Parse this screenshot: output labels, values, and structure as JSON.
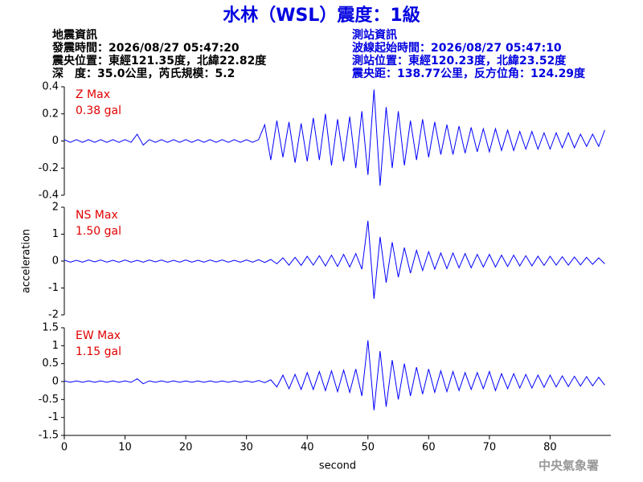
{
  "header": {
    "title": "水林（WSL）震度：1級",
    "left": [
      "地震資訊",
      "發震時間：2026/08/27 05:47:20",
      "震央位置：東經121.35度，北緯22.82度",
      "深　度：35.0公里，芮氏規模：5.2"
    ],
    "right": [
      "測站資訊",
      "波線起始時間：2026/08/27 05:47:10",
      "測站位置：東經120.23度，北緯23.52度",
      "震央距：138.77公里，反方位角：124.29度"
    ]
  },
  "chart_data": [
    {
      "type": "line",
      "annotation": [
        "Z Max",
        "0.38 gal"
      ],
      "color": "#0000ff",
      "xlim": [
        0,
        90
      ],
      "ylim": [
        -0.4,
        0.4
      ],
      "yticks": [
        -0.4,
        -0.2,
        0,
        0.2,
        0.4
      ],
      "x": [
        0,
        1,
        2,
        3,
        4,
        5,
        6,
        7,
        8,
        9,
        10,
        11,
        12,
        13,
        14,
        15,
        16,
        17,
        18,
        19,
        20,
        21,
        22,
        23,
        24,
        25,
        26,
        27,
        28,
        29,
        30,
        31,
        32,
        33,
        34,
        35,
        36,
        37,
        38,
        39,
        40,
        41,
        42,
        43,
        44,
        45,
        46,
        47,
        48,
        49,
        50,
        51,
        52,
        53,
        54,
        55,
        56,
        57,
        58,
        59,
        60,
        61,
        62,
        63,
        64,
        65,
        66,
        67,
        68,
        69,
        70,
        71,
        72,
        73,
        74,
        75,
        76,
        77,
        78,
        79,
        80,
        81,
        82,
        83,
        84,
        85,
        86,
        87,
        88,
        89
      ],
      "values": [
        0.01,
        -0.01,
        0.01,
        -0.01,
        0.01,
        -0.01,
        0.01,
        -0.01,
        0.01,
        -0.01,
        0.01,
        -0.01,
        0.05,
        -0.03,
        0.01,
        -0.01,
        0.01,
        -0.01,
        0.01,
        -0.01,
        0.01,
        -0.01,
        0.01,
        -0.01,
        0.01,
        -0.01,
        0.01,
        -0.01,
        0.01,
        -0.01,
        0.01,
        -0.01,
        0.01,
        0.12,
        -0.14,
        0.15,
        -0.12,
        0.14,
        -0.16,
        0.13,
        -0.15,
        0.17,
        -0.14,
        0.2,
        -0.18,
        0.16,
        -0.15,
        0.18,
        -0.2,
        0.22,
        -0.25,
        0.38,
        -0.33,
        0.25,
        -0.2,
        0.22,
        -0.18,
        0.15,
        -0.14,
        0.16,
        -0.12,
        0.14,
        -0.1,
        0.12,
        -0.1,
        0.11,
        -0.09,
        0.1,
        -0.08,
        0.09,
        -0.08,
        0.09,
        -0.07,
        0.08,
        -0.07,
        0.07,
        -0.06,
        0.07,
        -0.06,
        0.06,
        -0.06,
        0.06,
        -0.05,
        0.06,
        -0.05,
        0.05,
        -0.04,
        0.05,
        -0.04,
        0.08
      ]
    },
    {
      "type": "line",
      "annotation": [
        "NS Max",
        "1.50 gal"
      ],
      "color": "#0000ff",
      "y_label": "acceleration",
      "xlim": [
        0,
        90
      ],
      "ylim": [
        -2,
        2
      ],
      "yticks": [
        -2,
        -1,
        0,
        1,
        2
      ],
      "x": [
        0,
        1,
        2,
        3,
        4,
        5,
        6,
        7,
        8,
        9,
        10,
        11,
        12,
        13,
        14,
        15,
        16,
        17,
        18,
        19,
        20,
        21,
        22,
        23,
        24,
        25,
        26,
        27,
        28,
        29,
        30,
        31,
        32,
        33,
        34,
        35,
        36,
        37,
        38,
        39,
        40,
        41,
        42,
        43,
        44,
        45,
        46,
        47,
        48,
        49,
        50,
        51,
        52,
        53,
        54,
        55,
        56,
        57,
        58,
        59,
        60,
        61,
        62,
        63,
        64,
        65,
        66,
        67,
        68,
        69,
        70,
        71,
        72,
        73,
        74,
        75,
        76,
        77,
        78,
        79,
        80,
        81,
        82,
        83,
        84,
        85,
        86,
        87,
        88,
        89
      ],
      "values": [
        0.04,
        -0.04,
        0.03,
        -0.04,
        0.04,
        -0.03,
        0.04,
        -0.04,
        0.03,
        -0.04,
        0.04,
        -0.04,
        0.03,
        -0.04,
        0.04,
        -0.03,
        0.04,
        -0.04,
        0.03,
        -0.04,
        0.04,
        -0.04,
        0.03,
        -0.04,
        0.04,
        -0.03,
        0.04,
        -0.04,
        0.03,
        -0.04,
        0.04,
        -0.04,
        0.05,
        -0.05,
        0.06,
        -0.1,
        0.12,
        -0.15,
        0.14,
        -0.16,
        0.18,
        -0.15,
        0.2,
        -0.18,
        0.22,
        -0.2,
        0.25,
        -0.22,
        0.28,
        -0.3,
        1.5,
        -1.4,
        0.9,
        -0.8,
        0.7,
        -0.6,
        0.5,
        -0.45,
        0.4,
        -0.35,
        0.35,
        -0.3,
        0.3,
        -0.28,
        0.3,
        -0.25,
        0.28,
        -0.25,
        0.25,
        -0.22,
        0.25,
        -0.22,
        0.22,
        -0.2,
        0.22,
        -0.18,
        0.2,
        -0.18,
        0.18,
        -0.16,
        0.18,
        -0.15,
        0.16,
        -0.15,
        0.15,
        -0.14,
        0.14,
        -0.12,
        0.12,
        -0.1
      ]
    },
    {
      "type": "line",
      "annotation": [
        "EW Max",
        "1.15 gal"
      ],
      "color": "#0000ff",
      "x_label": "second",
      "xlim": [
        0,
        90
      ],
      "xticks": [
        0,
        10,
        20,
        30,
        40,
        50,
        60,
        70,
        80
      ],
      "ylim": [
        -1.5,
        1.5
      ],
      "yticks": [
        -1.5,
        -1,
        -0.5,
        0,
        0.5,
        1,
        1.5
      ],
      "x": [
        0,
        1,
        2,
        3,
        4,
        5,
        6,
        7,
        8,
        9,
        10,
        11,
        12,
        13,
        14,
        15,
        16,
        17,
        18,
        19,
        20,
        21,
        22,
        23,
        24,
        25,
        26,
        27,
        28,
        29,
        30,
        31,
        32,
        33,
        34,
        35,
        36,
        37,
        38,
        39,
        40,
        41,
        42,
        43,
        44,
        45,
        46,
        47,
        48,
        49,
        50,
        51,
        52,
        53,
        54,
        55,
        56,
        57,
        58,
        59,
        60,
        61,
        62,
        63,
        64,
        65,
        66,
        67,
        68,
        69,
        70,
        71,
        72,
        73,
        74,
        75,
        76,
        77,
        78,
        79,
        80,
        81,
        82,
        83,
        84,
        85,
        86,
        87,
        88,
        89
      ],
      "values": [
        0.02,
        -0.02,
        0.02,
        -0.02,
        0.02,
        -0.02,
        0.02,
        -0.02,
        0.02,
        -0.02,
        0.02,
        -0.02,
        0.08,
        -0.06,
        0.02,
        -0.02,
        0.02,
        -0.02,
        0.02,
        -0.02,
        0.02,
        -0.02,
        0.02,
        -0.02,
        0.02,
        -0.02,
        0.02,
        -0.02,
        0.02,
        -0.02,
        0.02,
        -0.02,
        0.03,
        -0.03,
        0.05,
        -0.15,
        0.18,
        -0.2,
        0.2,
        -0.22,
        0.25,
        -0.22,
        0.28,
        -0.25,
        0.3,
        -0.28,
        0.32,
        -0.3,
        0.35,
        -0.4,
        1.15,
        -0.8,
        0.85,
        -0.7,
        0.6,
        -0.5,
        0.5,
        -0.4,
        0.4,
        -0.35,
        0.35,
        -0.3,
        0.3,
        -0.28,
        0.28,
        -0.25,
        0.25,
        -0.22,
        0.25,
        -0.2,
        0.28,
        -0.25,
        0.22,
        -0.2,
        0.22,
        -0.18,
        0.2,
        -0.18,
        0.18,
        -0.16,
        0.18,
        -0.15,
        0.16,
        -0.14,
        0.15,
        -0.13,
        0.14,
        -0.12,
        0.12,
        -0.1
      ]
    }
  ],
  "footer": "中央氣象署"
}
